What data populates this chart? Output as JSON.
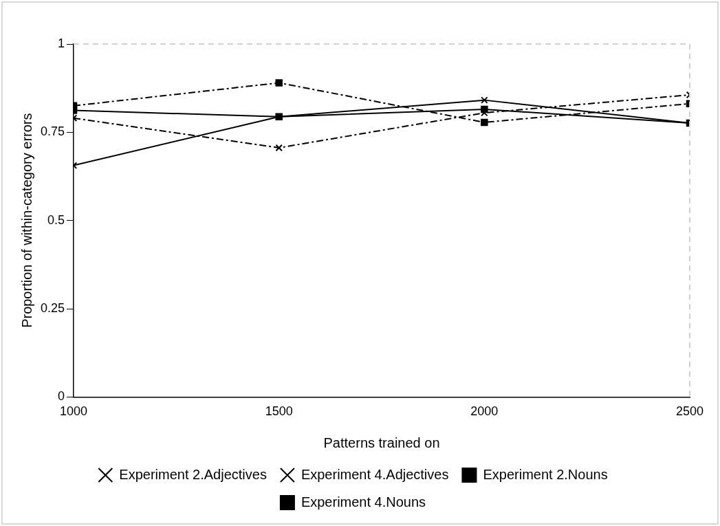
{
  "chart_data": {
    "type": "line",
    "xlabel": "Patterns trained on",
    "ylabel": "Proportion of within-category errors",
    "x": [
      1000,
      1500,
      2000,
      2500
    ],
    "xlim": [
      1000,
      2500
    ],
    "xticks": [
      1000,
      1500,
      2000,
      2500
    ],
    "ylim": [
      0,
      1
    ],
    "yticks": [
      0,
      0.25,
      0.5,
      0.75,
      1
    ],
    "grid": false,
    "legend": "bottom",
    "series": [
      {
        "name": "Experiment 2.Adjectives",
        "color": "#000000",
        "values": [
          0.656,
          0.794,
          0.841,
          0.776
        ],
        "marker": "cross",
        "line_style": "solid"
      },
      {
        "name": "Experiment 2.Nouns",
        "color": "#000000",
        "values": [
          0.812,
          0.794,
          0.815,
          0.776
        ],
        "marker": "square",
        "line_style": "solid"
      },
      {
        "name": "Experiment 4.Adjectives",
        "color": "#000000",
        "values": [
          0.79,
          0.706,
          0.805,
          0.856
        ],
        "marker": "cross",
        "line_style": "dashed"
      },
      {
        "name": "Experiment 4.Nouns",
        "color": "#000000",
        "values": [
          0.825,
          0.89,
          0.778,
          0.831
        ],
        "marker": "square",
        "line_style": "dashed"
      }
    ]
  }
}
